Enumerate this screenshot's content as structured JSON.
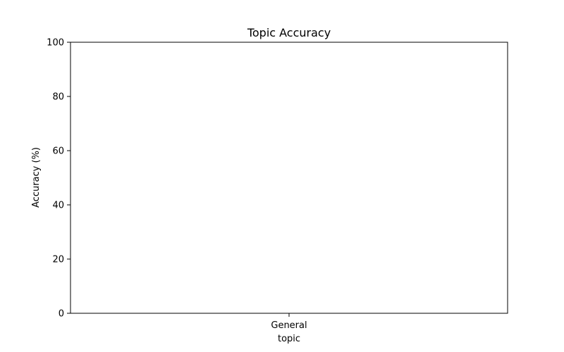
{
  "chart_data": {
    "type": "bar",
    "title": "Topic Accuracy",
    "xlabel": "topic",
    "ylabel": "Accuracy (%)",
    "categories": [
      "General"
    ],
    "values": [
      0
    ],
    "ylim": [
      0,
      100
    ],
    "yticks": [
      0,
      20,
      40,
      60,
      80,
      100
    ],
    "grid": false,
    "legend": "none",
    "colors": {
      "bar": "#1f77b4",
      "axis": "#000000",
      "background": "#ffffff"
    }
  }
}
